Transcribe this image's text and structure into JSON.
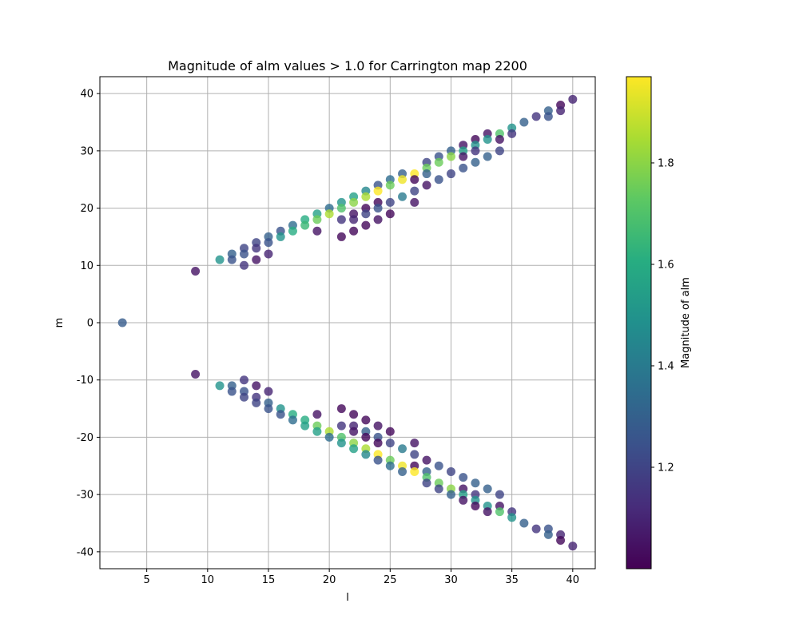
{
  "chart_data": {
    "type": "scatter",
    "title": "Magnitude of alm values > 1.0 for Carrington map 2200",
    "xlabel": "l",
    "ylabel": "m",
    "xlim": [
      1.15,
      41.85
    ],
    "ylim": [
      -42.95,
      42.95
    ],
    "xticks": [
      5,
      10,
      15,
      20,
      25,
      30,
      35,
      40
    ],
    "yticks": [
      -40,
      -30,
      -20,
      -10,
      0,
      10,
      20,
      30,
      40
    ],
    "grid": true,
    "colorbar": {
      "label": "Magnitude of alm",
      "colormap": "viridis",
      "range": [
        1.0,
        1.97
      ],
      "ticks": [
        1.2,
        1.4,
        1.6,
        1.8
      ]
    },
    "points": [
      {
        "l": 3,
        "m": 0,
        "v": 1.28
      },
      {
        "l": 9,
        "m": 9,
        "v": 1.05
      },
      {
        "l": 9,
        "m": -9,
        "v": 1.05
      },
      {
        "l": 11,
        "m": 11,
        "v": 1.5
      },
      {
        "l": 11,
        "m": -11,
        "v": 1.5
      },
      {
        "l": 12,
        "m": 12,
        "v": 1.3
      },
      {
        "l": 12,
        "m": 11,
        "v": 1.25
      },
      {
        "l": 12,
        "m": -11,
        "v": 1.3
      },
      {
        "l": 12,
        "m": -12,
        "v": 1.25
      },
      {
        "l": 13,
        "m": 13,
        "v": 1.2
      },
      {
        "l": 13,
        "m": 12,
        "v": 1.25
      },
      {
        "l": 13,
        "m": 10,
        "v": 1.15
      },
      {
        "l": 13,
        "m": -10,
        "v": 1.15
      },
      {
        "l": 13,
        "m": -12,
        "v": 1.25
      },
      {
        "l": 13,
        "m": -13,
        "v": 1.2
      },
      {
        "l": 14,
        "m": 14,
        "v": 1.2
      },
      {
        "l": 14,
        "m": 13,
        "v": 1.15
      },
      {
        "l": 14,
        "m": 11,
        "v": 1.05
      },
      {
        "l": 14,
        "m": -11,
        "v": 1.05
      },
      {
        "l": 14,
        "m": -13,
        "v": 1.15
      },
      {
        "l": 14,
        "m": -14,
        "v": 1.2
      },
      {
        "l": 15,
        "m": 15,
        "v": 1.3
      },
      {
        "l": 15,
        "m": 14,
        "v": 1.25
      },
      {
        "l": 15,
        "m": 12,
        "v": 1.1
      },
      {
        "l": 15,
        "m": -12,
        "v": 1.1
      },
      {
        "l": 15,
        "m": -14,
        "v": 1.3
      },
      {
        "l": 15,
        "m": -15,
        "v": 1.25
      },
      {
        "l": 16,
        "m": 16,
        "v": 1.25
      },
      {
        "l": 16,
        "m": 15,
        "v": 1.5
      },
      {
        "l": 16,
        "m": -15,
        "v": 1.5
      },
      {
        "l": 16,
        "m": -16,
        "v": 1.25
      },
      {
        "l": 17,
        "m": 17,
        "v": 1.35
      },
      {
        "l": 17,
        "m": 16,
        "v": 1.6
      },
      {
        "l": 17,
        "m": -16,
        "v": 1.6
      },
      {
        "l": 17,
        "m": -17,
        "v": 1.35
      },
      {
        "l": 18,
        "m": 18,
        "v": 1.6
      },
      {
        "l": 18,
        "m": 17,
        "v": 1.65
      },
      {
        "l": 18,
        "m": -17,
        "v": 1.6
      },
      {
        "l": 18,
        "m": -18,
        "v": 1.55
      },
      {
        "l": 19,
        "m": 19,
        "v": 1.55
      },
      {
        "l": 19,
        "m": 18,
        "v": 1.75
      },
      {
        "l": 19,
        "m": 16,
        "v": 1.05
      },
      {
        "l": 19,
        "m": -16,
        "v": 1.05
      },
      {
        "l": 19,
        "m": -18,
        "v": 1.75
      },
      {
        "l": 19,
        "m": -19,
        "v": 1.55
      },
      {
        "l": 20,
        "m": 20,
        "v": 1.35
      },
      {
        "l": 20,
        "m": 19,
        "v": 1.85
      },
      {
        "l": 20,
        "m": -19,
        "v": 1.85
      },
      {
        "l": 20,
        "m": -20,
        "v": 1.35
      },
      {
        "l": 21,
        "m": 21,
        "v": 1.5
      },
      {
        "l": 21,
        "m": 20,
        "v": 1.7
      },
      {
        "l": 21,
        "m": 18,
        "v": 1.15
      },
      {
        "l": 21,
        "m": 15,
        "v": 1.02
      },
      {
        "l": 21,
        "m": -15,
        "v": 1.02
      },
      {
        "l": 21,
        "m": -18,
        "v": 1.15
      },
      {
        "l": 21,
        "m": -20,
        "v": 1.7
      },
      {
        "l": 21,
        "m": -21,
        "v": 1.5
      },
      {
        "l": 22,
        "m": 22,
        "v": 1.55
      },
      {
        "l": 22,
        "m": 21,
        "v": 1.8
      },
      {
        "l": 22,
        "m": 19,
        "v": 1.05
      },
      {
        "l": 22,
        "m": 18,
        "v": 1.1
      },
      {
        "l": 22,
        "m": 16,
        "v": 1.02
      },
      {
        "l": 22,
        "m": -16,
        "v": 1.02
      },
      {
        "l": 22,
        "m": -18,
        "v": 1.1
      },
      {
        "l": 22,
        "m": -19,
        "v": 1.05
      },
      {
        "l": 22,
        "m": -21,
        "v": 1.8
      },
      {
        "l": 22,
        "m": -22,
        "v": 1.55
      },
      {
        "l": 23,
        "m": 23,
        "v": 1.45
      },
      {
        "l": 23,
        "m": 22,
        "v": 1.85
      },
      {
        "l": 23,
        "m": 20,
        "v": 1.02
      },
      {
        "l": 23,
        "m": 19,
        "v": 1.2
      },
      {
        "l": 23,
        "m": 17,
        "v": 1.02
      },
      {
        "l": 23,
        "m": -17,
        "v": 1.02
      },
      {
        "l": 23,
        "m": -19,
        "v": 1.3
      },
      {
        "l": 23,
        "m": -20,
        "v": 1.02
      },
      {
        "l": 23,
        "m": -22,
        "v": 1.85
      },
      {
        "l": 23,
        "m": -23,
        "v": 1.45
      },
      {
        "l": 24,
        "m": 24,
        "v": 1.25
      },
      {
        "l": 24,
        "m": 23,
        "v": 1.97
      },
      {
        "l": 24,
        "m": 21,
        "v": 1.02
      },
      {
        "l": 24,
        "m": 20,
        "v": 1.25
      },
      {
        "l": 24,
        "m": 18,
        "v": 1.05
      },
      {
        "l": 24,
        "m": -18,
        "v": 1.05
      },
      {
        "l": 24,
        "m": -20,
        "v": 1.25
      },
      {
        "l": 24,
        "m": -21,
        "v": 1.02
      },
      {
        "l": 24,
        "m": -23,
        "v": 1.97
      },
      {
        "l": 24,
        "m": -24,
        "v": 1.25
      },
      {
        "l": 25,
        "m": 25,
        "v": 1.35
      },
      {
        "l": 25,
        "m": 24,
        "v": 1.75
      },
      {
        "l": 25,
        "m": 21,
        "v": 1.2
      },
      {
        "l": 25,
        "m": 19,
        "v": 1.02
      },
      {
        "l": 25,
        "m": -19,
        "v": 1.02
      },
      {
        "l": 25,
        "m": -21,
        "v": 1.2
      },
      {
        "l": 25,
        "m": -24,
        "v": 1.75
      },
      {
        "l": 25,
        "m": -25,
        "v": 1.35
      },
      {
        "l": 26,
        "m": 26,
        "v": 1.3
      },
      {
        "l": 26,
        "m": 25,
        "v": 1.95
      },
      {
        "l": 26,
        "m": 22,
        "v": 1.4
      },
      {
        "l": 26,
        "m": -22,
        "v": 1.4
      },
      {
        "l": 26,
        "m": -25,
        "v": 1.95
      },
      {
        "l": 26,
        "m": -26,
        "v": 1.3
      },
      {
        "l": 27,
        "m": 26,
        "v": 1.97
      },
      {
        "l": 27,
        "m": 25,
        "v": 1.02
      },
      {
        "l": 27,
        "m": 23,
        "v": 1.2
      },
      {
        "l": 27,
        "m": 21,
        "v": 1.05
      },
      {
        "l": 27,
        "m": -21,
        "v": 1.05
      },
      {
        "l": 27,
        "m": -23,
        "v": 1.2
      },
      {
        "l": 27,
        "m": -25,
        "v": 1.02
      },
      {
        "l": 27,
        "m": -26,
        "v": 1.97
      },
      {
        "l": 28,
        "m": 28,
        "v": 1.2
      },
      {
        "l": 28,
        "m": 27,
        "v": 1.75
      },
      {
        "l": 28,
        "m": 26,
        "v": 1.3
      },
      {
        "l": 28,
        "m": 24,
        "v": 1.05
      },
      {
        "l": 28,
        "m": -24,
        "v": 1.05
      },
      {
        "l": 28,
        "m": -26,
        "v": 1.3
      },
      {
        "l": 28,
        "m": -27,
        "v": 1.7
      },
      {
        "l": 28,
        "m": -28,
        "v": 1.2
      },
      {
        "l": 29,
        "m": 29,
        "v": 1.25
      },
      {
        "l": 29,
        "m": 28,
        "v": 1.75
      },
      {
        "l": 29,
        "m": 25,
        "v": 1.25
      },
      {
        "l": 29,
        "m": -25,
        "v": 1.25
      },
      {
        "l": 29,
        "m": -28,
        "v": 1.75
      },
      {
        "l": 29,
        "m": -29,
        "v": 1.2
      },
      {
        "l": 30,
        "m": 30,
        "v": 1.3
      },
      {
        "l": 30,
        "m": 29,
        "v": 1.8
      },
      {
        "l": 30,
        "m": 26,
        "v": 1.2
      },
      {
        "l": 30,
        "m": -26,
        "v": 1.2
      },
      {
        "l": 30,
        "m": -29,
        "v": 1.8
      },
      {
        "l": 30,
        "m": -30,
        "v": 1.3
      },
      {
        "l": 31,
        "m": 31,
        "v": 1.05
      },
      {
        "l": 31,
        "m": 30,
        "v": 1.55
      },
      {
        "l": 31,
        "m": 29,
        "v": 1.05
      },
      {
        "l": 31,
        "m": 27,
        "v": 1.25
      },
      {
        "l": 31,
        "m": -27,
        "v": 1.25
      },
      {
        "l": 31,
        "m": -29,
        "v": 1.05
      },
      {
        "l": 31,
        "m": -30,
        "v": 1.55
      },
      {
        "l": 31,
        "m": -31,
        "v": 1.05
      },
      {
        "l": 32,
        "m": 32,
        "v": 1.02
      },
      {
        "l": 32,
        "m": 31,
        "v": 1.5
      },
      {
        "l": 32,
        "m": 30,
        "v": 1.15
      },
      {
        "l": 32,
        "m": 28,
        "v": 1.3
      },
      {
        "l": 32,
        "m": -28,
        "v": 1.3
      },
      {
        "l": 32,
        "m": -30,
        "v": 1.15
      },
      {
        "l": 32,
        "m": -31,
        "v": 1.5
      },
      {
        "l": 32,
        "m": -32,
        "v": 1.02
      },
      {
        "l": 33,
        "m": 33,
        "v": 1.05
      },
      {
        "l": 33,
        "m": 32,
        "v": 1.5
      },
      {
        "l": 33,
        "m": 29,
        "v": 1.3
      },
      {
        "l": 33,
        "m": -29,
        "v": 1.3
      },
      {
        "l": 33,
        "m": -32,
        "v": 1.5
      },
      {
        "l": 33,
        "m": -33,
        "v": 1.05
      },
      {
        "l": 34,
        "m": 33,
        "v": 1.7
      },
      {
        "l": 34,
        "m": 32,
        "v": 1.05
      },
      {
        "l": 34,
        "m": 30,
        "v": 1.2
      },
      {
        "l": 34,
        "m": -30,
        "v": 1.2
      },
      {
        "l": 34,
        "m": -32,
        "v": 1.05
      },
      {
        "l": 34,
        "m": -33,
        "v": 1.7
      },
      {
        "l": 35,
        "m": 34,
        "v": 1.5
      },
      {
        "l": 35,
        "m": 33,
        "v": 1.15
      },
      {
        "l": 35,
        "m": -33,
        "v": 1.15
      },
      {
        "l": 35,
        "m": -34,
        "v": 1.5
      },
      {
        "l": 36,
        "m": 35,
        "v": 1.3
      },
      {
        "l": 36,
        "m": -35,
        "v": 1.3
      },
      {
        "l": 37,
        "m": 36,
        "v": 1.15
      },
      {
        "l": 37,
        "m": -36,
        "v": 1.15
      },
      {
        "l": 38,
        "m": 37,
        "v": 1.3
      },
      {
        "l": 38,
        "m": 36,
        "v": 1.25
      },
      {
        "l": 38,
        "m": -36,
        "v": 1.25
      },
      {
        "l": 38,
        "m": -37,
        "v": 1.3
      },
      {
        "l": 39,
        "m": 38,
        "v": 1.02
      },
      {
        "l": 39,
        "m": 37,
        "v": 1.1
      },
      {
        "l": 39,
        "m": -37,
        "v": 1.1
      },
      {
        "l": 39,
        "m": -38,
        "v": 1.02
      },
      {
        "l": 40,
        "m": 39,
        "v": 1.1
      },
      {
        "l": 40,
        "m": -39,
        "v": 1.1
      }
    ]
  }
}
